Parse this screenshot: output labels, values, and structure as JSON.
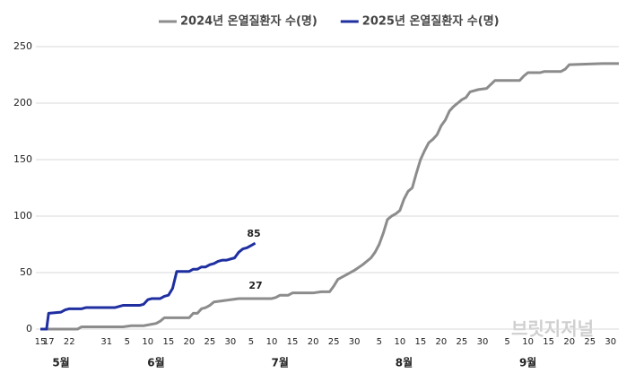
{
  "chart_data": {
    "type": "line",
    "series": [
      {
        "name": "2024년 온열질환자 수(명)",
        "color": "#8c8c8c",
        "x": [
          0,
          9,
          10,
          20,
          22,
          25,
          28,
          29,
          30,
          36,
          37,
          38,
          39,
          40,
          41,
          42,
          44,
          46,
          48,
          56,
          57,
          58,
          60,
          61,
          66,
          68,
          70,
          71,
          72,
          74,
          76,
          78,
          80,
          81,
          82,
          83,
          84,
          85,
          86,
          87,
          88,
          89,
          90,
          91,
          92,
          93,
          94,
          95,
          96,
          97,
          98,
          99,
          100,
          101,
          102,
          103,
          104,
          106,
          108,
          110,
          116,
          117,
          118,
          121,
          122,
          126,
          127,
          128,
          136,
          140
        ],
        "values": [
          0,
          0,
          2,
          2,
          3,
          3,
          5,
          7,
          10,
          10,
          14,
          14,
          18,
          19,
          21,
          24,
          25,
          26,
          27,
          27,
          28,
          30,
          30,
          32,
          32,
          33,
          33,
          38,
          44,
          48,
          52,
          57,
          63,
          68,
          75,
          85,
          97,
          100,
          102,
          105,
          115,
          122,
          125,
          138,
          150,
          158,
          165,
          168,
          172,
          180,
          185,
          193,
          197,
          200,
          203,
          205,
          210,
          212,
          213,
          220,
          220,
          224,
          227,
          227,
          228,
          228,
          230,
          234,
          235,
          235
        ]
      },
      {
        "name": "2025년 온열질환자 수(명)",
        "color": "#1f2fa0",
        "x": [
          0,
          1.5,
          2,
          5,
          6,
          7,
          10,
          11,
          18,
          19,
          20,
          24,
          25,
          26,
          27,
          29,
          30,
          31,
          32,
          33,
          36,
          37,
          38,
          39,
          40,
          41,
          42,
          43,
          44,
          45,
          46,
          47,
          48,
          49,
          50,
          51,
          52
        ],
        "values": [
          0,
          0,
          14,
          15,
          17,
          18,
          18,
          19,
          19,
          20,
          21,
          21,
          22,
          26,
          27,
          27,
          29,
          30,
          36,
          51,
          51,
          53,
          53,
          55,
          55,
          57,
          58,
          60,
          61,
          61,
          62,
          63,
          68,
          71,
          72,
          74,
          76
        ]
      }
    ],
    "annotations": [
      "85",
      "27"
    ],
    "xlim": [
      0,
      140
    ],
    "xticks": [
      {
        "value": 0,
        "label": "15"
      },
      {
        "value": 2,
        "label": "17"
      },
      {
        "value": 7,
        "label": "22"
      },
      {
        "value": 16,
        "label": "31"
      },
      {
        "value": 21,
        "label": "5"
      },
      {
        "value": 26,
        "label": "10"
      },
      {
        "value": 31,
        "label": "15"
      },
      {
        "value": 36,
        "label": "20"
      },
      {
        "value": 41,
        "label": "25"
      },
      {
        "value": 46,
        "label": "30"
      },
      {
        "value": 51,
        "label": "5"
      },
      {
        "value": 56,
        "label": "10"
      },
      {
        "value": 61,
        "label": "15"
      },
      {
        "value": 66,
        "label": "20"
      },
      {
        "value": 71,
        "label": "25"
      },
      {
        "value": 76,
        "label": "30"
      },
      {
        "value": 82,
        "label": "5"
      },
      {
        "value": 87,
        "label": "10"
      },
      {
        "value": 92,
        "label": "15"
      },
      {
        "value": 97,
        "label": "20"
      },
      {
        "value": 102,
        "label": "25"
      },
      {
        "value": 107,
        "label": "30"
      },
      {
        "value": 113,
        "label": "5"
      },
      {
        "value": 118,
        "label": "10"
      },
      {
        "value": 123,
        "label": "15"
      },
      {
        "value": 128,
        "label": "20"
      },
      {
        "value": 133,
        "label": "25"
      },
      {
        "value": 138,
        "label": "30"
      }
    ],
    "xgroups": [
      {
        "value": 5,
        "label": "5월"
      },
      {
        "value": 28,
        "label": "6월"
      },
      {
        "value": 58,
        "label": "7월"
      },
      {
        "value": 88,
        "label": "8월"
      },
      {
        "value": 118,
        "label": "9월"
      }
    ],
    "ylim": [
      0,
      250
    ],
    "yticks": [
      0,
      50,
      100,
      150,
      200,
      250
    ],
    "grid": true
  },
  "watermark": "브릿지저널"
}
